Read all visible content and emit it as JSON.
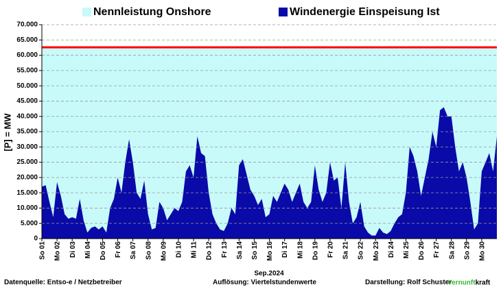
{
  "chart_data": {
    "type": "area",
    "legend": [
      "Nennleistung Onshore",
      "Windenergie Einspeisung Ist"
    ],
    "ylabel": "[P] = MW",
    "xlabel": "Sep.2024",
    "footer": {
      "source": "Datenquelle: Entso-e  / Netzbetreiber",
      "resolution": "Auflösung: Viertelstundenwerte",
      "author": "Darstellung: Rolf Schuster",
      "brand_green": "Vernunft",
      "brand_black": "kraft"
    },
    "grid": true,
    "ylim": [
      0,
      70000
    ],
    "yticks": [
      {
        "value": 0,
        "label": "0"
      },
      {
        "value": 5000,
        "label": "5.000"
      },
      {
        "value": 10000,
        "label": "10.000"
      },
      {
        "value": 15000,
        "label": "15.000"
      },
      {
        "value": 20000,
        "label": "20.000"
      },
      {
        "value": 25000,
        "label": "25.000"
      },
      {
        "value": 30000,
        "label": "30.000"
      },
      {
        "value": 35000,
        "label": "35.000"
      },
      {
        "value": 40000,
        "label": "40.000"
      },
      {
        "value": 45000,
        "label": "45.000"
      },
      {
        "value": 50000,
        "label": "50.000"
      },
      {
        "value": 55000,
        "label": "55.000"
      },
      {
        "value": 60000,
        "label": "60.000"
      },
      {
        "value": 65000,
        "label": "65.000"
      },
      {
        "value": 70000,
        "label": "70.000"
      }
    ],
    "categories": [
      "So 01",
      null,
      null,
      null,
      "Mo 02",
      null,
      null,
      null,
      "Di 03",
      null,
      null,
      null,
      "Mi 04",
      null,
      null,
      null,
      "Do 05",
      null,
      null,
      null,
      "Fr 06",
      null,
      null,
      null,
      "Sa 07",
      null,
      null,
      null,
      "So 08",
      null,
      null,
      null,
      "Mo 09",
      null,
      null,
      null,
      "Di 10",
      null,
      null,
      null,
      "Mi 11",
      null,
      null,
      null,
      "Do 12",
      null,
      null,
      null,
      "Fr 13",
      null,
      null,
      null,
      "Sa 14",
      null,
      null,
      null,
      "So 15",
      null,
      null,
      null,
      "Mo 16",
      null,
      null,
      null,
      "Di 17",
      null,
      null,
      null,
      "Mi 18",
      null,
      null,
      null,
      "Do 19",
      null,
      null,
      null,
      "Fr 20",
      null,
      null,
      null,
      "Sa 21",
      null,
      null,
      null,
      "So 22",
      null,
      null,
      null,
      "Mo 23",
      null,
      null,
      null,
      "Di 24",
      null,
      null,
      null,
      "Mi 25",
      null,
      null,
      null,
      "Do 26",
      null,
      null,
      null,
      "Fr 27",
      null,
      null,
      null,
      "Sa 28",
      null,
      null,
      null,
      "So 29",
      null,
      null,
      null,
      "Mo 30",
      null,
      null,
      null,
      null
    ],
    "series": [
      {
        "name": "Nennleistung Onshore",
        "color": "#c8fafa",
        "line_color": "#ff0000",
        "values": [
          62600,
          62600,
          62600,
          62600,
          62600,
          62600,
          62600,
          62600,
          62600,
          62600,
          62600,
          62600,
          62600,
          62600,
          62600,
          62600,
          62600,
          62600,
          62600,
          62600,
          62600,
          62600,
          62600,
          62600,
          62600,
          62600,
          62600,
          62600,
          62600,
          62600,
          62600,
          62600,
          62600,
          62600,
          62600,
          62600,
          62600,
          62600,
          62600,
          62600,
          62600,
          62600,
          62600,
          62600,
          62600,
          62600,
          62600,
          62600,
          62600,
          62600,
          62600,
          62600,
          62600,
          62600,
          62600,
          62600,
          62600,
          62600,
          62600,
          62600,
          62600,
          62600,
          62600,
          62600,
          62600,
          62600,
          62600,
          62600,
          62600,
          62600,
          62600,
          62600,
          62600,
          62600,
          62600,
          62600,
          62600,
          62600,
          62600,
          62600,
          62600,
          62600,
          62600,
          62600,
          62600,
          62600,
          62600,
          62600,
          62600,
          62600,
          62600,
          62600,
          62600,
          62600,
          62600,
          62600,
          62600,
          62600,
          62600,
          62600,
          62600,
          62600,
          62600,
          62600,
          62600,
          62600,
          62600,
          62600,
          62600,
          62600,
          62600,
          62600,
          62600,
          62600,
          62600,
          62600,
          62600,
          62600,
          62600,
          62600,
          62600
        ]
      },
      {
        "name": "Windenergie Einspeisung Ist",
        "color": "#0a0aa8",
        "values": [
          17000,
          17500,
          12000,
          7000,
          18500,
          14000,
          8000,
          6500,
          7000,
          6500,
          13000,
          6000,
          2000,
          3500,
          4000,
          3000,
          4000,
          2000,
          10000,
          13000,
          20000,
          15000,
          25000,
          32500,
          25000,
          15000,
          13000,
          19000,
          8000,
          3000,
          3500,
          12000,
          10000,
          6000,
          8000,
          10000,
          9000,
          12000,
          22000,
          24000,
          20000,
          33500,
          28000,
          27000,
          15000,
          8000,
          5000,
          3000,
          2500,
          5000,
          10000,
          8000,
          24000,
          26000,
          21000,
          16000,
          14000,
          11000,
          13000,
          7000,
          8000,
          14000,
          12000,
          15000,
          18000,
          16000,
          12000,
          15000,
          18000,
          12000,
          10000,
          12000,
          24000,
          16000,
          12000,
          15000,
          25000,
          19000,
          20000,
          10000,
          25000,
          12000,
          5000,
          7000,
          12000,
          4000,
          2000,
          1000,
          1000,
          3500,
          2000,
          1500,
          2500,
          5000,
          7000,
          8000,
          15000,
          30000,
          27000,
          22000,
          14000,
          20000,
          26000,
          35000,
          30000,
          42000,
          43000,
          40000,
          40000,
          30000,
          22000,
          25000,
          20000,
          12000,
          3000,
          5000,
          22000,
          25000,
          28000,
          22000,
          33500
        ]
      }
    ]
  }
}
